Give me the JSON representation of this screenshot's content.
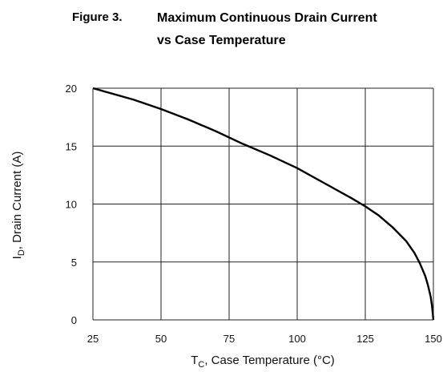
{
  "figure": {
    "number": "Figure 3.",
    "title_line1": "Maximum Continuous Drain Current",
    "title_line2": "vs Case Temperature"
  },
  "chart_data": {
    "type": "line",
    "title": "Maximum Continuous Drain Current vs Case Temperature",
    "xlabel": {
      "symbol": "T",
      "sub": "C",
      "rest": ", Case Temperature (°C)"
    },
    "ylabel": {
      "symbol": "I",
      "sub": "D",
      "rest": ", Drain Current (A)"
    },
    "xlim": [
      25,
      150
    ],
    "ylim": [
      0,
      20
    ],
    "xticks": [
      25,
      50,
      75,
      100,
      125,
      150
    ],
    "yticks": [
      0,
      5,
      10,
      15,
      20
    ],
    "grid": true,
    "series": [
      {
        "x": [
          25,
          40,
          50,
          60,
          70,
          80,
          90,
          100,
          110,
          120,
          125,
          130,
          135,
          140,
          143,
          145,
          147,
          148,
          149,
          149.5,
          150
        ],
        "y": [
          20,
          19,
          18.2,
          17.3,
          16.3,
          15.2,
          14.2,
          13.1,
          11.8,
          10.5,
          9.8,
          9.0,
          8.0,
          6.8,
          5.8,
          4.9,
          3.8,
          3.0,
          2.0,
          1.2,
          0
        ]
      }
    ]
  }
}
